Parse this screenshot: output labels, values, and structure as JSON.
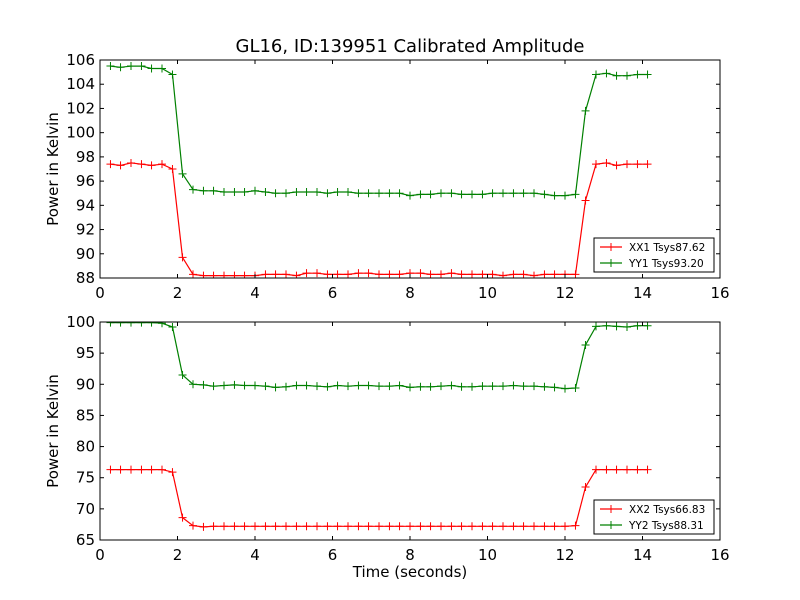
{
  "figure": {
    "title": "GL16, ID:139951 Calibrated Amplitude",
    "xlabel": "Time (seconds)"
  },
  "chart_data": [
    {
      "type": "line",
      "title": "GL16, ID:139951 Calibrated Amplitude",
      "xlabel": "",
      "ylabel": "Power in Kelvin",
      "xlim": [
        0,
        16
      ],
      "ylim": [
        88,
        106
      ],
      "xticks": [
        0,
        2,
        4,
        6,
        8,
        10,
        12,
        14,
        16
      ],
      "yticks": [
        88,
        90,
        92,
        94,
        96,
        98,
        100,
        102,
        104,
        106
      ],
      "legend_position": "lower-right",
      "x": [
        0.27,
        0.53,
        0.8,
        1.07,
        1.33,
        1.6,
        1.87,
        2.13,
        2.4,
        2.67,
        2.93,
        3.2,
        3.47,
        3.73,
        4.0,
        4.27,
        4.53,
        4.8,
        5.07,
        5.33,
        5.6,
        5.87,
        6.13,
        6.4,
        6.67,
        6.93,
        7.2,
        7.47,
        7.73,
        8.0,
        8.27,
        8.53,
        8.8,
        9.07,
        9.33,
        9.6,
        9.87,
        10.13,
        10.4,
        10.67,
        10.93,
        11.2,
        11.47,
        11.73,
        12.0,
        12.27,
        12.53,
        12.8,
        13.07,
        13.33,
        13.6,
        13.87,
        14.13
      ],
      "series": [
        {
          "name": "XX1 Tsys87.62",
          "color": "#ff0000",
          "values": [
            97.4,
            97.3,
            97.5,
            97.4,
            97.3,
            97.4,
            97.0,
            89.7,
            88.3,
            88.2,
            88.2,
            88.2,
            88.2,
            88.2,
            88.2,
            88.3,
            88.3,
            88.3,
            88.2,
            88.4,
            88.4,
            88.3,
            88.3,
            88.3,
            88.4,
            88.4,
            88.3,
            88.3,
            88.3,
            88.4,
            88.4,
            88.3,
            88.3,
            88.4,
            88.3,
            88.3,
            88.3,
            88.3,
            88.2,
            88.3,
            88.3,
            88.2,
            88.3,
            88.3,
            88.3,
            88.3,
            94.4,
            97.4,
            97.5,
            97.3,
            97.4,
            97.4,
            97.4
          ]
        },
        {
          "name": "YY1 Tsys93.20",
          "color": "#008000",
          "values": [
            105.5,
            105.4,
            105.5,
            105.5,
            105.3,
            105.3,
            104.8,
            96.6,
            95.3,
            95.2,
            95.2,
            95.1,
            95.1,
            95.1,
            95.2,
            95.1,
            95.0,
            95.0,
            95.1,
            95.1,
            95.1,
            95.0,
            95.1,
            95.1,
            95.0,
            95.0,
            95.0,
            95.0,
            95.0,
            94.8,
            94.9,
            94.9,
            95.0,
            95.0,
            94.9,
            94.9,
            94.9,
            95.0,
            95.0,
            95.0,
            95.0,
            95.0,
            94.9,
            94.8,
            94.8,
            94.9,
            101.8,
            104.8,
            104.9,
            104.7,
            104.7,
            104.8,
            104.8
          ]
        }
      ]
    },
    {
      "type": "line",
      "title": "",
      "xlabel": "Time (seconds)",
      "ylabel": "Power in Kelvin",
      "xlim": [
        0,
        16
      ],
      "ylim": [
        65,
        100
      ],
      "xticks": [
        0,
        2,
        4,
        6,
        8,
        10,
        12,
        14,
        16
      ],
      "yticks": [
        65,
        70,
        75,
        80,
        85,
        90,
        95,
        100
      ],
      "legend_position": "lower-right",
      "x": [
        0.27,
        0.53,
        0.8,
        1.07,
        1.33,
        1.6,
        1.87,
        2.13,
        2.4,
        2.67,
        2.93,
        3.2,
        3.47,
        3.73,
        4.0,
        4.27,
        4.53,
        4.8,
        5.07,
        5.33,
        5.6,
        5.87,
        6.13,
        6.4,
        6.67,
        6.93,
        7.2,
        7.47,
        7.73,
        8.0,
        8.27,
        8.53,
        8.8,
        9.07,
        9.33,
        9.6,
        9.87,
        10.13,
        10.4,
        10.67,
        10.93,
        11.2,
        11.47,
        11.73,
        12.0,
        12.27,
        12.53,
        12.8,
        13.07,
        13.33,
        13.6,
        13.87,
        14.13
      ],
      "series": [
        {
          "name": "XX2 Tsys66.83",
          "color": "#ff0000",
          "values": [
            76.3,
            76.3,
            76.3,
            76.3,
            76.3,
            76.3,
            75.9,
            68.6,
            67.3,
            67.1,
            67.2,
            67.2,
            67.2,
            67.2,
            67.2,
            67.2,
            67.2,
            67.2,
            67.2,
            67.2,
            67.2,
            67.2,
            67.2,
            67.2,
            67.2,
            67.2,
            67.2,
            67.2,
            67.2,
            67.2,
            67.2,
            67.2,
            67.2,
            67.2,
            67.2,
            67.2,
            67.2,
            67.2,
            67.2,
            67.2,
            67.2,
            67.2,
            67.2,
            67.2,
            67.2,
            67.3,
            73.5,
            76.3,
            76.3,
            76.3,
            76.3,
            76.3,
            76.3
          ]
        },
        {
          "name": "YY2 Tsys88.31",
          "color": "#008000",
          "values": [
            99.9,
            99.9,
            99.9,
            99.9,
            99.9,
            99.8,
            99.2,
            91.5,
            90.0,
            89.9,
            89.7,
            89.8,
            89.9,
            89.8,
            89.8,
            89.7,
            89.5,
            89.6,
            89.8,
            89.8,
            89.7,
            89.6,
            89.8,
            89.7,
            89.8,
            89.8,
            89.7,
            89.7,
            89.8,
            89.5,
            89.6,
            89.6,
            89.7,
            89.8,
            89.6,
            89.6,
            89.7,
            89.7,
            89.7,
            89.8,
            89.7,
            89.7,
            89.6,
            89.5,
            89.3,
            89.4,
            96.3,
            99.3,
            99.4,
            99.3,
            99.2,
            99.4,
            99.4
          ]
        }
      ]
    }
  ]
}
